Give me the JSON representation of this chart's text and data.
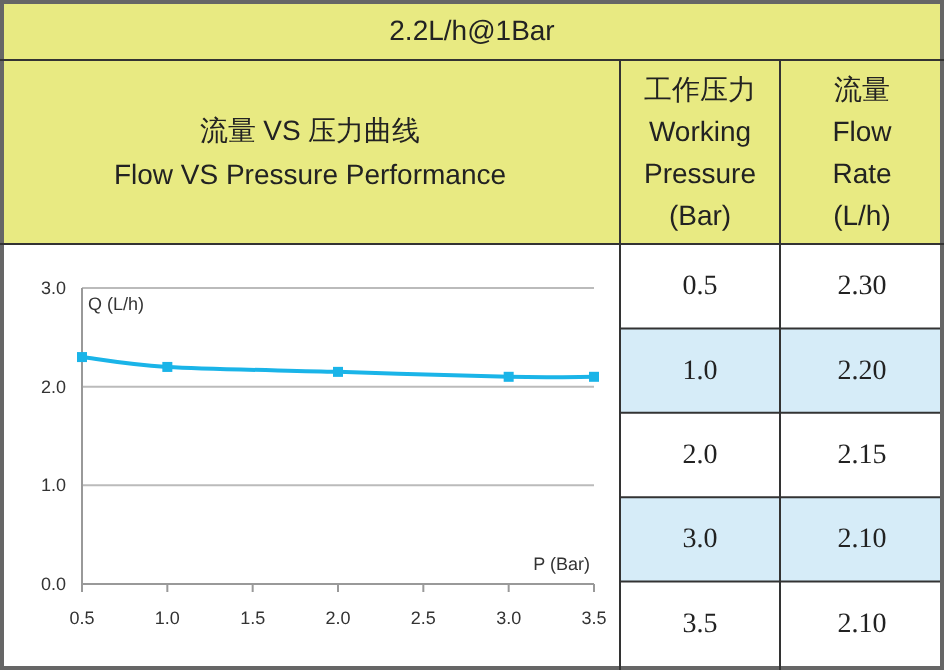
{
  "chart_data": [
    {
      "type": "line",
      "title": "2.2L/h@1Bar",
      "subtitle": "流量 VS 压力曲线\nFlow VS Pressure Performance",
      "xlabel": "P (Bar)",
      "ylabel": "Q (L/h)",
      "x": [
        0.5,
        1.0,
        2.0,
        3.0,
        3.5
      ],
      "series": [
        {
          "color": "#1ab4e8",
          "values": [
            2.3,
            2.2,
            2.15,
            2.1,
            2.1
          ]
        }
      ],
      "xlim": [
        0.5,
        3.5
      ],
      "ylim": [
        0,
        3
      ],
      "xticks": [
        0.5,
        {
          "value": 1,
          "label": "1.0"
        },
        1.5,
        {
          "value": 2,
          "label": "2.0"
        },
        2.5,
        {
          "value": 3,
          "label": "3.0"
        },
        3.5
      ],
      "yticks": [
        {
          "value": 0,
          "label": "0.0"
        },
        {
          "value": 1,
          "label": "1.0"
        },
        {
          "value": 2,
          "label": "2.0"
        },
        {
          "value": 3,
          "label": "3.0"
        }
      ],
      "grid": "y",
      "marker": "square",
      "line_style": "solid"
    },
    {
      "type": "other",
      "annotations": [
        "工作压力\nWorking\nPressure\n(Bar)",
        "流量\nFlow\nRate\n(L/h)",
        "0.5",
        "2.30",
        "1.0",
        "2.20",
        "2.0",
        "2.15",
        "3.0",
        "2.10",
        "3.5",
        "2.10"
      ]
    }
  ]
}
